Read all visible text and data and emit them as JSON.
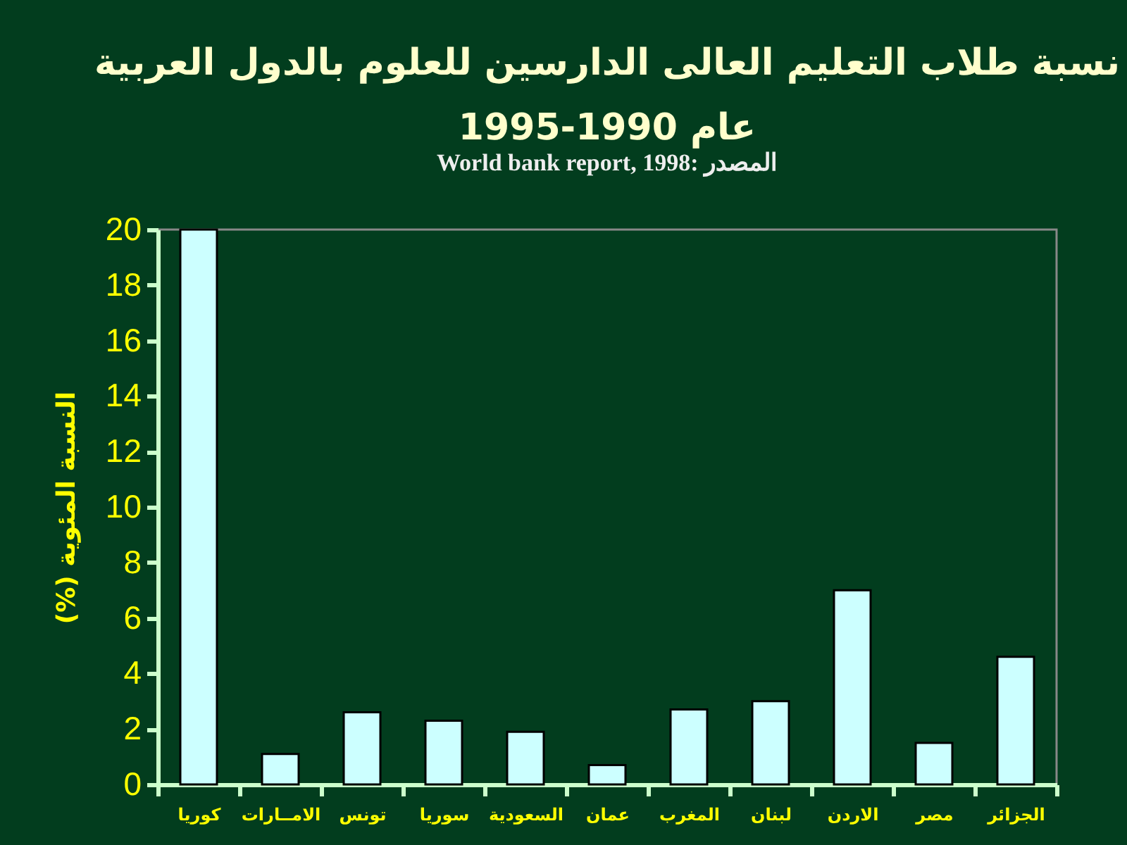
{
  "chart_data": {
    "type": "bar",
    "title": "نسبة طلاب التعليم العالى الدارسين للعلوم بالدول العربية\n1995-1990 عام",
    "ylabel": "(%) النسبة المئوية",
    "annotations": [
      "World bank report, 1998: المصدر"
    ],
    "categories": [
      "كوريا",
      "الامــارات",
      "تونس",
      "سوريا",
      "السعودية",
      "عمان",
      "المغرب",
      "لبنان",
      "الاردن",
      "مصر",
      "الجزائر"
    ],
    "values": [
      20,
      1.1,
      2.6,
      2.3,
      1.9,
      0.7,
      2.7,
      3.0,
      7.0,
      1.5,
      4.6
    ],
    "color": "#ccffff",
    "ylim": [
      0,
      20
    ],
    "yticks": [
      0,
      2,
      4,
      6,
      8,
      10,
      12,
      14,
      16,
      18,
      20
    ]
  }
}
